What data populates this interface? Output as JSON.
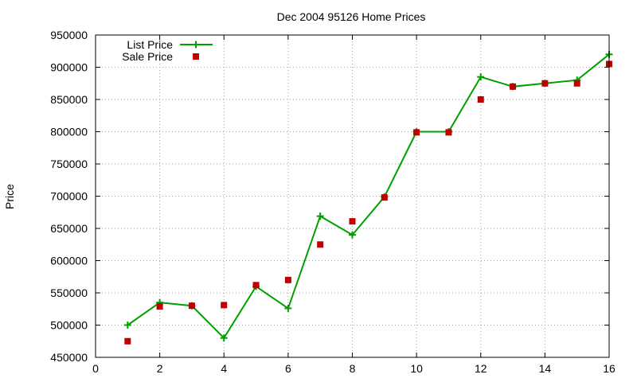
{
  "chart_data": {
    "type": "line",
    "title": "Dec 2004 95126 Home Prices",
    "xlabel": "",
    "ylabel": "Price",
    "xlim": [
      0,
      16
    ],
    "ylim": [
      450000,
      950000
    ],
    "xticks": [
      0,
      2,
      4,
      6,
      8,
      10,
      12,
      14,
      16
    ],
    "yticks": [
      450000,
      500000,
      550000,
      600000,
      650000,
      700000,
      750000,
      800000,
      850000,
      900000,
      950000
    ],
    "grid": true,
    "legend_position": "top-left",
    "series": [
      {
        "name": "List Price",
        "style": "line-with-plus-markers",
        "color": "#00a000",
        "x": [
          1,
          2,
          3,
          4,
          5,
          6,
          7,
          8,
          9,
          10,
          11,
          12,
          13,
          14,
          15,
          16
        ],
        "y": [
          500000,
          535000,
          530000,
          480000,
          560000,
          526000,
          669000,
          640000,
          699000,
          800000,
          800000,
          885000,
          870000,
          875000,
          880000,
          920000
        ]
      },
      {
        "name": "Sale Price",
        "style": "square-markers",
        "color": "#c00000",
        "x": [
          1,
          2,
          3,
          4,
          5,
          6,
          7,
          8,
          9,
          10,
          11,
          12,
          13,
          14,
          15,
          16
        ],
        "y": [
          475000,
          529000,
          530000,
          531000,
          562000,
          570000,
          625000,
          661000,
          698000,
          799000,
          799000,
          850000,
          870000,
          875000,
          875000,
          905000
        ]
      }
    ]
  }
}
